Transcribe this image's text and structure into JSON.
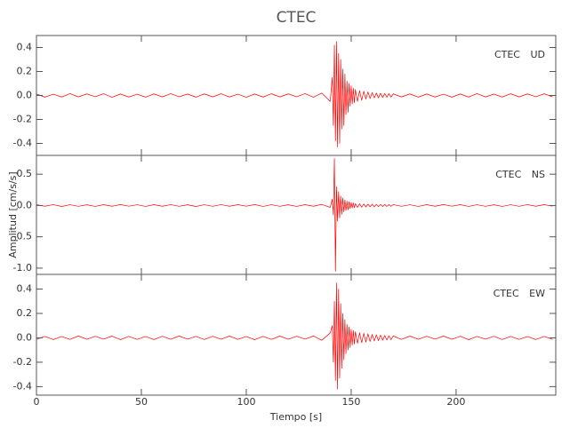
{
  "chart_data": [
    {
      "type": "line",
      "title": "CTEC",
      "label": "CTEC UD",
      "color": "#ff0000",
      "xlim": [
        0,
        247.5
      ],
      "ylim": [
        -0.5,
        0.5
      ],
      "yticks": [
        -0.4,
        -0.2,
        {
          "value": 0,
          "label": "0.0"
        },
        0.2,
        0.4
      ],
      "x": [
        0,
        4,
        8,
        12,
        16,
        20,
        24,
        28,
        32,
        36,
        40,
        44,
        48,
        52,
        56,
        60,
        64,
        68,
        72,
        76,
        80,
        84,
        88,
        92,
        96,
        100,
        104,
        108,
        112,
        116,
        120,
        124,
        128,
        132,
        136,
        140,
        141,
        141.5,
        142,
        142.5,
        143,
        143.5,
        144,
        144.5,
        145,
        145.5,
        146,
        146.5,
        147,
        147.5,
        148,
        148.5,
        149,
        149.5,
        150,
        150.5,
        151,
        151.5,
        152,
        153,
        154,
        155,
        156,
        157,
        158,
        159,
        160,
        161,
        162,
        163,
        164,
        165,
        166,
        167,
        168,
        169,
        170,
        174,
        178,
        182,
        186,
        190,
        194,
        198,
        202,
        206,
        210,
        214,
        218,
        222,
        226,
        230,
        234,
        238,
        242,
        246
      ],
      "values": [
        0.012,
        -0.014,
        0.011,
        -0.013,
        0.015,
        -0.012,
        0.013,
        -0.011,
        0.014,
        -0.015,
        0.012,
        -0.013,
        0.011,
        -0.014,
        0.013,
        -0.012,
        0.015,
        -0.011,
        0.012,
        -0.014,
        0.013,
        -0.012,
        0.014,
        -0.013,
        0.011,
        -0.015,
        0.012,
        -0.013,
        0.014,
        -0.012,
        0.013,
        -0.011,
        0.015,
        -0.014,
        0.02,
        -0.05,
        0.15,
        -0.25,
        0.42,
        -0.38,
        0.45,
        -0.43,
        0.35,
        -0.4,
        0.3,
        -0.28,
        0.22,
        -0.25,
        0.18,
        -0.16,
        0.12,
        -0.14,
        0.1,
        -0.09,
        0.08,
        -0.07,
        0.06,
        -0.06,
        0.05,
        -0.05,
        0.04,
        -0.04,
        0.035,
        -0.03,
        0.03,
        -0.025,
        0.025,
        -0.02,
        0.02,
        -0.02,
        0.018,
        -0.017,
        0.016,
        -0.015,
        0.015,
        -0.014,
        0.013,
        -0.012,
        0.013,
        -0.014,
        0.012,
        -0.013,
        0.011,
        -0.014,
        0.012,
        -0.013,
        0.015,
        -0.012,
        0.011,
        -0.013,
        0.014,
        -0.012,
        0.013,
        -0.011,
        0.014,
        -0.012
      ]
    },
    {
      "type": "line",
      "label": "CTEC NS",
      "ylabel": "Amplitud [cm/s/s]",
      "color": "#ff0000",
      "xlim": [
        0,
        247.5
      ],
      "ylim": [
        -1.1,
        0.8
      ],
      "yticks": [
        {
          "value": -1,
          "label": "-1.0"
        },
        -0.5,
        {
          "value": 0,
          "label": "0.0"
        },
        0.5
      ],
      "x": [
        0,
        4,
        8,
        12,
        16,
        20,
        24,
        28,
        32,
        36,
        40,
        44,
        48,
        52,
        56,
        60,
        64,
        68,
        72,
        76,
        80,
        84,
        88,
        92,
        96,
        100,
        104,
        108,
        112,
        116,
        120,
        124,
        128,
        132,
        136,
        140,
        141,
        141.5,
        142,
        142.5,
        143,
        143.5,
        144,
        144.5,
        145,
        145.5,
        146,
        146.5,
        147,
        147.5,
        148,
        148.5,
        149,
        149.5,
        150,
        150.5,
        151,
        151.5,
        152,
        153,
        154,
        155,
        156,
        157,
        158,
        159,
        160,
        161,
        162,
        163,
        164,
        165,
        166,
        167,
        168,
        169,
        170,
        174,
        178,
        182,
        186,
        190,
        194,
        198,
        202,
        206,
        210,
        214,
        218,
        222,
        226,
        230,
        234,
        238,
        242,
        246
      ],
      "values": [
        0.013,
        -0.012,
        0.014,
        -0.015,
        0.012,
        -0.013,
        0.011,
        -0.014,
        0.013,
        -0.012,
        0.015,
        -0.011,
        0.012,
        -0.014,
        0.013,
        -0.012,
        0.014,
        -0.013,
        0.011,
        -0.015,
        0.012,
        -0.013,
        0.014,
        -0.012,
        0.013,
        -0.011,
        0.015,
        -0.014,
        0.012,
        -0.013,
        0.011,
        -0.014,
        0.013,
        -0.012,
        0.018,
        -0.03,
        0.1,
        -0.15,
        0.75,
        -1.05,
        0.3,
        -0.25,
        0.22,
        -0.2,
        0.15,
        -0.14,
        0.12,
        -0.1,
        0.09,
        -0.08,
        0.07,
        -0.07,
        0.06,
        -0.05,
        0.05,
        -0.04,
        0.04,
        -0.035,
        0.03,
        -0.03,
        0.028,
        -0.027,
        0.025,
        -0.024,
        0.022,
        -0.021,
        0.02,
        -0.019,
        0.018,
        -0.018,
        0.017,
        -0.016,
        0.016,
        -0.015,
        0.015,
        -0.014,
        0.014,
        -0.013,
        0.012,
        -0.014,
        0.013,
        -0.012,
        0.015,
        -0.011,
        0.013,
        -0.014,
        0.012,
        -0.013,
        0.011,
        -0.014,
        0.012,
        -0.013,
        0.014,
        -0.012,
        0.013,
        -0.011
      ]
    },
    {
      "type": "line",
      "label": "CTEC EW",
      "xlabel": "Tiempo [s]",
      "color": "#ff0000",
      "xlim": [
        0,
        247.5
      ],
      "ylim": [
        -0.47,
        0.52
      ],
      "yticks": [
        -0.4,
        -0.2,
        {
          "value": 0,
          "label": "0.0"
        },
        0.2,
        0.4
      ],
      "xticks": [
        0,
        50,
        100,
        150,
        200
      ],
      "x": [
        0,
        4,
        8,
        12,
        16,
        20,
        24,
        28,
        32,
        36,
        40,
        44,
        48,
        52,
        56,
        60,
        64,
        68,
        72,
        76,
        80,
        84,
        88,
        92,
        96,
        100,
        104,
        108,
        112,
        116,
        120,
        124,
        128,
        132,
        136,
        140,
        141,
        141.5,
        142,
        142.5,
        143,
        143.5,
        144,
        144.5,
        145,
        145.5,
        146,
        146.5,
        147,
        147.5,
        148,
        148.5,
        149,
        149.5,
        150,
        150.5,
        151,
        151.5,
        152,
        153,
        154,
        155,
        156,
        157,
        158,
        159,
        160,
        161,
        162,
        163,
        164,
        165,
        166,
        167,
        168,
        169,
        170,
        174,
        178,
        182,
        186,
        190,
        194,
        198,
        202,
        206,
        210,
        214,
        218,
        222,
        226,
        230,
        234,
        238,
        242,
        246
      ],
      "values": [
        -0.013,
        0.012,
        -0.014,
        0.011,
        -0.013,
        0.015,
        -0.012,
        0.013,
        -0.011,
        0.014,
        -0.015,
        0.012,
        -0.013,
        0.011,
        -0.014,
        0.013,
        -0.012,
        0.015,
        -0.011,
        0.012,
        -0.014,
        0.013,
        -0.012,
        0.014,
        -0.013,
        0.011,
        -0.015,
        0.012,
        -0.013,
        0.014,
        -0.012,
        0.013,
        -0.011,
        0.015,
        -0.02,
        0.04,
        0.1,
        -0.2,
        0.3,
        -0.35,
        0.45,
        -0.42,
        0.4,
        -0.33,
        0.28,
        -0.25,
        0.2,
        -0.18,
        0.15,
        -0.13,
        0.11,
        -0.1,
        0.09,
        -0.08,
        0.07,
        -0.06,
        0.06,
        -0.05,
        0.05,
        -0.045,
        0.042,
        -0.04,
        0.037,
        -0.035,
        0.033,
        -0.03,
        0.028,
        -0.026,
        0.025,
        -0.023,
        0.022,
        -0.02,
        0.019,
        -0.018,
        0.017,
        -0.016,
        0.015,
        -0.013,
        0.014,
        -0.012,
        0.013,
        -0.011,
        0.014,
        -0.012,
        0.013,
        -0.015,
        0.012,
        -0.011,
        0.013,
        -0.014,
        0.012,
        -0.013,
        0.011,
        -0.014,
        0.012,
        -0.013
      ]
    }
  ]
}
